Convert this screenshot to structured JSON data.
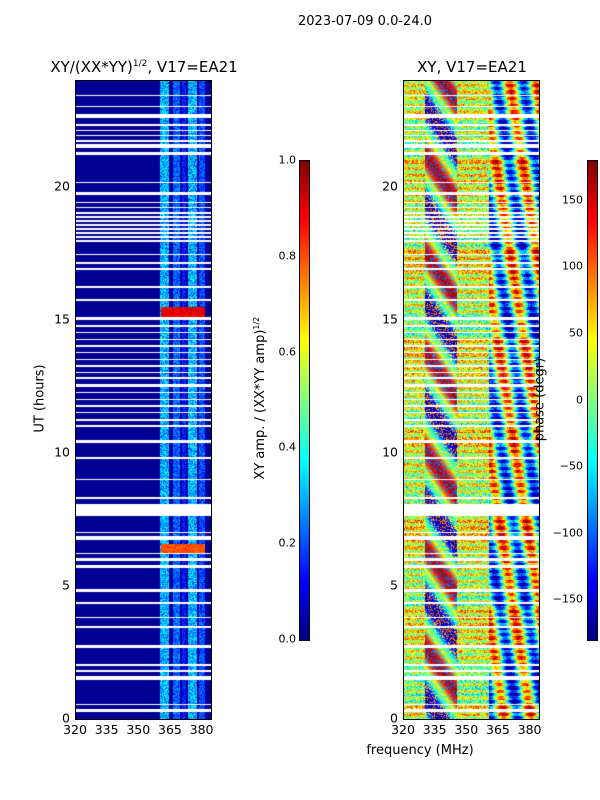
{
  "suptitle": "2023-07-09 0.0-24.0",
  "colors": {
    "jet_bottom": "#00007f",
    "jet_top": "#7f0000",
    "background": "#ffffff"
  },
  "chart_data": [
    {
      "type": "heatmap",
      "title_base": "XY/(XX*YY)",
      "title_sup": "1/2",
      "title_suffix": ", V17=EA21",
      "xlabel": "",
      "ylabel": "UT (hours)",
      "xlim": [
        320,
        384
      ],
      "ylim": [
        0,
        24
      ],
      "xticks": [
        320,
        335,
        350,
        365,
        380
      ],
      "yticks": [
        0,
        5,
        10,
        15,
        20
      ],
      "colorbar": {
        "label_base": "XY amp. / (XX*YY amp)",
        "label_sup": "1/2",
        "vmin": 0.0,
        "vmax": 1.0,
        "ticks": [
          "0.0",
          "0.2",
          "0.4",
          "0.6",
          "0.8",
          "1.0"
        ],
        "tick_values": [
          0.0,
          0.2,
          0.4,
          0.6,
          0.8,
          1.0
        ]
      },
      "description_values": {
        "background_level": 0.0,
        "band_columns_mhz": [
          {
            "x0": 360,
            "x1": 364,
            "level": 0.3
          },
          {
            "x0": 366,
            "x1": 369,
            "level": 0.22
          },
          {
            "x0": 370,
            "x1": 372,
            "level": 0.15
          },
          {
            "x0": 373,
            "x1": 377,
            "level": 0.3
          },
          {
            "x0": 378,
            "x1": 381,
            "level": 0.2
          }
        ],
        "hot_spots_ut": [
          {
            "ut": 6.4,
            "level": 0.75
          },
          {
            "ut": 15.3,
            "level": 0.85
          }
        ]
      }
    },
    {
      "type": "heatmap",
      "title": "XY, V17=EA21",
      "xlabel": "frequency (MHz)",
      "ylabel": "",
      "xlim": [
        320,
        384
      ],
      "ylim": [
        0,
        24
      ],
      "xticks": [
        320,
        335,
        350,
        365,
        380
      ],
      "yticks": [
        0,
        5,
        10,
        15,
        20
      ],
      "colorbar": {
        "label": "phase (degr)",
        "vmin": -180,
        "vmax": 180,
        "ticks": [
          "−150",
          "−100",
          "−50",
          "0",
          "50",
          "100",
          "150"
        ],
        "tick_values": [
          -150,
          -100,
          -50,
          0,
          50,
          100,
          150
        ]
      }
    }
  ],
  "flag_gaps_ut": [
    [
      0.3,
      0.38
    ],
    [
      0.55,
      0.6
    ],
    [
      1.5,
      1.62
    ],
    [
      1.78,
      1.86
    ],
    [
      2.0,
      2.08
    ],
    [
      2.7,
      2.78
    ],
    [
      3.45,
      3.5
    ],
    [
      3.8,
      3.85
    ],
    [
      4.35,
      4.4
    ],
    [
      4.8,
      4.9
    ],
    [
      5.7,
      5.8
    ],
    [
      5.95,
      6.05
    ],
    [
      6.2,
      6.25
    ],
    [
      6.75,
      6.9
    ],
    [
      7.0,
      7.05
    ],
    [
      7.65,
      8.1
    ],
    [
      8.3,
      8.35
    ],
    [
      9.0,
      9.05
    ],
    [
      9.8,
      9.85
    ],
    [
      10.4,
      10.5
    ],
    [
      11.0,
      11.05
    ],
    [
      11.2,
      11.3
    ],
    [
      11.5,
      11.55
    ],
    [
      11.75,
      11.8
    ],
    [
      12.0,
      12.05
    ],
    [
      12.25,
      12.3
    ],
    [
      12.5,
      12.6
    ],
    [
      12.8,
      12.85
    ],
    [
      13.0,
      13.05
    ],
    [
      13.25,
      13.3
    ],
    [
      13.5,
      13.55
    ],
    [
      13.75,
      13.8
    ],
    [
      14.0,
      14.05
    ],
    [
      14.25,
      14.3
    ],
    [
      14.5,
      14.55
    ],
    [
      14.75,
      14.8
    ],
    [
      15.0,
      15.1
    ],
    [
      15.7,
      15.8
    ],
    [
      16.2,
      16.3
    ],
    [
      16.9,
      16.95
    ],
    [
      17.1,
      17.2
    ],
    [
      17.45,
      17.5
    ],
    [
      17.95,
      18.0
    ],
    [
      18.1,
      18.15
    ],
    [
      18.25,
      18.3
    ],
    [
      18.4,
      18.45
    ],
    [
      18.55,
      18.6
    ],
    [
      18.7,
      18.75
    ],
    [
      18.85,
      18.9
    ],
    [
      19.0,
      19.05
    ],
    [
      19.2,
      19.25
    ],
    [
      19.4,
      19.45
    ],
    [
      19.7,
      19.8
    ],
    [
      20.15,
      20.2
    ],
    [
      21.2,
      21.3
    ],
    [
      21.45,
      21.6
    ],
    [
      21.7,
      21.75
    ],
    [
      21.9,
      21.95
    ],
    [
      22.1,
      22.15
    ],
    [
      22.3,
      22.35
    ],
    [
      22.6,
      22.75
    ],
    [
      23.0,
      23.05
    ],
    [
      23.4,
      23.45
    ]
  ]
}
